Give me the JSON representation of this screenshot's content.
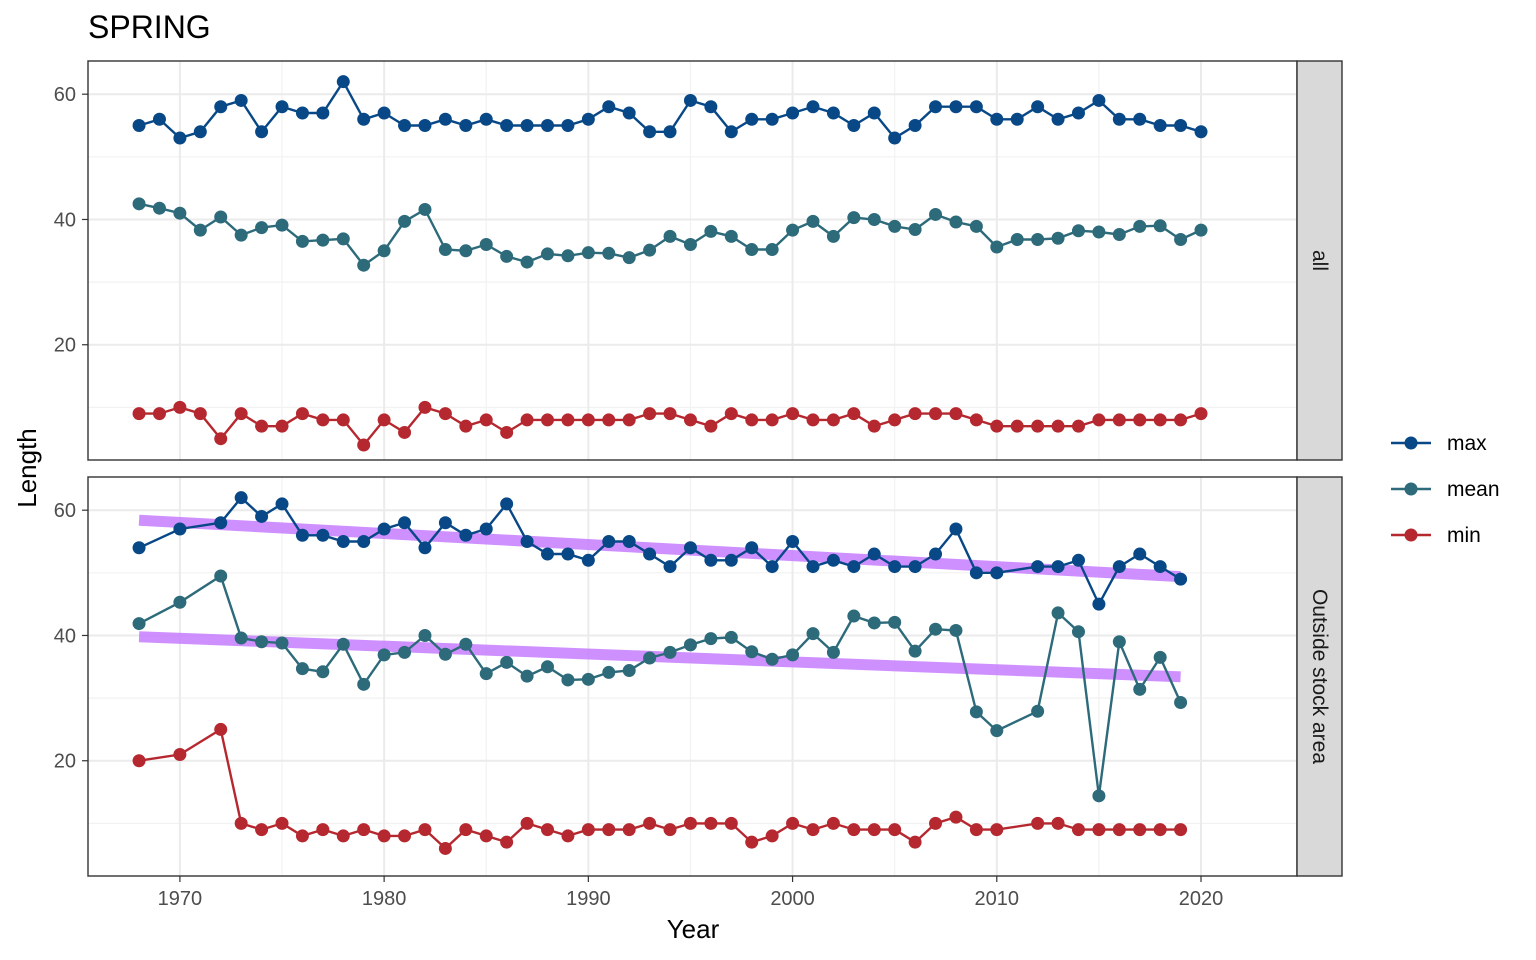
{
  "chart_data": {
    "type": "line",
    "title": "SPRING",
    "xlabel": "Year",
    "ylabel": "Length",
    "xlim": [
      1965.5,
      2024.7
    ],
    "ylim": [
      1.6,
      65.3
    ],
    "x_ticks": [
      1970,
      1980,
      1990,
      2000,
      2010,
      2020
    ],
    "y_ticks": [
      20,
      40,
      60
    ],
    "grid": true,
    "legend": {
      "position": "right",
      "entries": [
        "max",
        "mean",
        "min"
      ]
    },
    "colors": {
      "max": "#084887",
      "mean": "#2d6a7a",
      "min": "#b5282f",
      "trend": "#c77dff"
    },
    "facets": [
      {
        "strip": "all",
        "series": [
          {
            "name": "max",
            "x": [
              1968,
              1969,
              1970,
              1971,
              1972,
              1973,
              1974,
              1975,
              1976,
              1977,
              1978,
              1979,
              1980,
              1981,
              1982,
              1983,
              1984,
              1985,
              1986,
              1987,
              1988,
              1989,
              1990,
              1991,
              1992,
              1993,
              1994,
              1995,
              1996,
              1997,
              1998,
              1999,
              2000,
              2001,
              2002,
              2003,
              2004,
              2005,
              2006,
              2007,
              2008,
              2009,
              2010,
              2011,
              2012,
              2013,
              2014,
              2015,
              2016,
              2017,
              2018,
              2019,
              2020
            ],
            "values": [
              55,
              56,
              53,
              54,
              58,
              59,
              54,
              58,
              57,
              57,
              62,
              56,
              57,
              55,
              55,
              56,
              55,
              56,
              55,
              55,
              55,
              55,
              56,
              58,
              57,
              54,
              54,
              59,
              58,
              54,
              56,
              56,
              57,
              58,
              57,
              55,
              57,
              53,
              55,
              58,
              58,
              58,
              56,
              56,
              58,
              56,
              57,
              59,
              56,
              56,
              55,
              55,
              54
            ]
          },
          {
            "name": "mean",
            "x": [
              1968,
              1969,
              1970,
              1971,
              1972,
              1973,
              1974,
              1975,
              1976,
              1977,
              1978,
              1979,
              1980,
              1981,
              1982,
              1983,
              1984,
              1985,
              1986,
              1987,
              1988,
              1989,
              1990,
              1991,
              1992,
              1993,
              1994,
              1995,
              1996,
              1997,
              1998,
              1999,
              2000,
              2001,
              2002,
              2003,
              2004,
              2005,
              2006,
              2007,
              2008,
              2009,
              2010,
              2011,
              2012,
              2013,
              2014,
              2015,
              2016,
              2017,
              2018,
              2019,
              2020
            ],
            "values": [
              42.5,
              41.8,
              41,
              38.3,
              40.4,
              37.5,
              38.7,
              39.1,
              36.5,
              36.7,
              36.9,
              32.7,
              35,
              39.7,
              41.6,
              35.2,
              35,
              36,
              34.1,
              33.2,
              34.5,
              34.2,
              34.7,
              34.6,
              33.9,
              35.1,
              37.3,
              36,
              38.1,
              37.3,
              35.2,
              35.2,
              38.3,
              39.7,
              37.3,
              40.3,
              40,
              38.9,
              38.4,
              40.8,
              39.6,
              38.9,
              35.6,
              36.8,
              36.8,
              37,
              38.2,
              38,
              37.6,
              38.9,
              39,
              36.8,
              38.3
            ]
          },
          {
            "name": "min",
            "x": [
              1968,
              1969,
              1970,
              1971,
              1972,
              1973,
              1974,
              1975,
              1976,
              1977,
              1978,
              1979,
              1980,
              1981,
              1982,
              1983,
              1984,
              1985,
              1986,
              1987,
              1988,
              1989,
              1990,
              1991,
              1992,
              1993,
              1994,
              1995,
              1996,
              1997,
              1998,
              1999,
              2000,
              2001,
              2002,
              2003,
              2004,
              2005,
              2006,
              2007,
              2008,
              2009,
              2010,
              2011,
              2012,
              2013,
              2014,
              2015,
              2016,
              2017,
              2018,
              2019,
              2020
            ],
            "values": [
              9,
              9,
              10,
              9,
              5,
              9,
              7,
              7,
              9,
              8,
              8,
              4,
              8,
              6,
              10,
              9,
              7,
              8,
              6,
              8,
              8,
              8,
              8,
              8,
              8,
              9,
              9,
              8,
              7,
              9,
              8,
              8,
              9,
              8,
              8,
              9,
              7,
              8,
              9,
              9,
              9,
              8,
              7,
              7,
              7,
              7,
              7,
              8,
              8,
              8,
              8,
              8,
              9
            ]
          }
        ],
        "trends": []
      },
      {
        "strip": "Outside stock area",
        "series": [
          {
            "name": "max",
            "x": [
              1968,
              1970,
              1972,
              1973,
              1974,
              1975,
              1976,
              1977,
              1978,
              1979,
              1980,
              1981,
              1982,
              1983,
              1984,
              1985,
              1986,
              1987,
              1988,
              1989,
              1990,
              1991,
              1992,
              1993,
              1994,
              1995,
              1996,
              1997,
              1998,
              1999,
              2000,
              2001,
              2002,
              2003,
              2004,
              2005,
              2006,
              2007,
              2008,
              2009,
              2010,
              2012,
              2013,
              2014,
              2015,
              2016,
              2017,
              2018,
              2019
            ],
            "values": [
              54,
              57,
              58,
              62,
              59,
              61,
              56,
              56,
              55,
              55,
              57,
              58,
              54,
              58,
              56,
              57,
              61,
              55,
              53,
              53,
              52,
              55,
              55,
              53,
              51,
              54,
              52,
              52,
              54,
              51,
              55,
              51,
              52,
              51,
              53,
              51,
              51,
              53,
              57,
              50,
              50,
              51,
              51,
              52,
              45,
              51,
              53,
              51,
              49
            ]
          },
          {
            "name": "mean",
            "x": [
              1968,
              1970,
              1972,
              1973,
              1974,
              1975,
              1976,
              1977,
              1978,
              1979,
              1980,
              1981,
              1982,
              1983,
              1984,
              1985,
              1986,
              1987,
              1988,
              1989,
              1990,
              1991,
              1992,
              1993,
              1994,
              1995,
              1996,
              1997,
              1998,
              1999,
              2000,
              2001,
              2002,
              2003,
              2004,
              2005,
              2006,
              2007,
              2008,
              2009,
              2010,
              2012,
              2013,
              2014,
              2015,
              2016,
              2017,
              2018,
              2019
            ],
            "values": [
              41.9,
              45.3,
              49.5,
              39.6,
              39,
              38.8,
              34.7,
              34.2,
              38.6,
              32.2,
              36.9,
              37.3,
              40,
              37,
              38.6,
              33.9,
              35.7,
              33.5,
              35,
              32.9,
              33,
              34.1,
              34.4,
              36.4,
              37.3,
              38.5,
              39.5,
              39.7,
              37.4,
              36.2,
              36.9,
              40.3,
              37.3,
              43.1,
              42,
              42.1,
              37.5,
              41,
              40.8,
              27.8,
              24.8,
              27.9,
              43.6,
              40.6,
              14.4,
              39,
              31.4,
              36.5,
              29.3
            ]
          },
          {
            "name": "min",
            "x": [
              1968,
              1970,
              1972,
              1973,
              1974,
              1975,
              1976,
              1977,
              1978,
              1979,
              1980,
              1981,
              1982,
              1983,
              1984,
              1985,
              1986,
              1987,
              1988,
              1989,
              1990,
              1991,
              1992,
              1993,
              1994,
              1995,
              1996,
              1997,
              1998,
              1999,
              2000,
              2001,
              2002,
              2003,
              2004,
              2005,
              2006,
              2007,
              2008,
              2009,
              2010,
              2012,
              2013,
              2014,
              2015,
              2016,
              2017,
              2018,
              2019
            ],
            "values": [
              20,
              21,
              25,
              10,
              9,
              10,
              8,
              9,
              8,
              9,
              8,
              8,
              9,
              6,
              9,
              8,
              7,
              10,
              9,
              8,
              9,
              9,
              9,
              10,
              9,
              10,
              10,
              10,
              7,
              8,
              10,
              9,
              10,
              9,
              9,
              9,
              7,
              10,
              11,
              9,
              9,
              10,
              10,
              9,
              9,
              9,
              9,
              9,
              9
            ]
          }
        ],
        "trends": [
          {
            "x": [
              1968,
              2019
            ],
            "values": [
              58.4,
              49.4
            ]
          },
          {
            "x": [
              1968,
              2019
            ],
            "values": [
              39.8,
              33.4
            ]
          }
        ]
      }
    ]
  }
}
